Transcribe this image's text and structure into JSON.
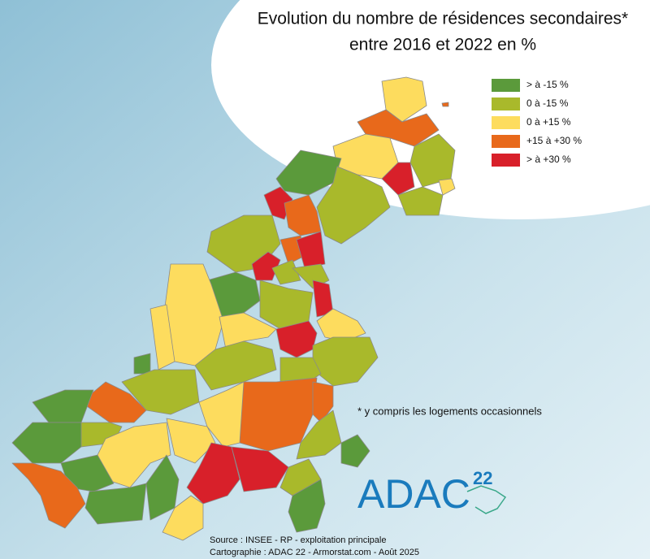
{
  "header": {
    "title_line1": "Evolution du nombre de résidences secondaires*",
    "title_line2": "entre 2016 et 2022 en %"
  },
  "legend": {
    "items": [
      {
        "label": "> à -15 %",
        "color": "#5b9a3b"
      },
      {
        "label": "0 à -15 %",
        "color": "#a9b92b"
      },
      {
        "label": "0 à +15 %",
        "color": "#fddc5e"
      },
      {
        "label": "+15 à +30 %",
        "color": "#e8691b"
      },
      {
        "label": "> à +30 %",
        "color": "#d8202a"
      }
    ]
  },
  "footnote": "* y compris les logements occasionnels",
  "logo": {
    "text": "ADAC",
    "number": "22"
  },
  "source": {
    "line1": "Source : INSEE - RP - exploitation principale",
    "line2": "Cartographie : ADAC 22 - Armorstat.com - Août 2025"
  }
}
